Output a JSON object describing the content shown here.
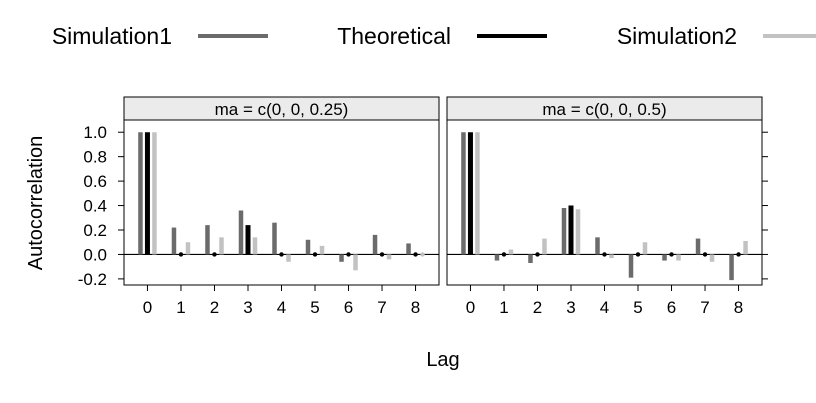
{
  "colors": {
    "Simulation1": "#6b6b6b",
    "Theoretical": "#000000",
    "Simulation2": "#c2c2c2",
    "strip_bg": "#ebebeb",
    "frame": "#000000"
  },
  "chart_data": {
    "type": "bar",
    "xlabel": "Lag",
    "ylabel": "Autocorrelation",
    "ylim": [
      -0.25,
      1.1
    ],
    "xlim": [
      -0.7,
      8.7
    ],
    "yticks": [
      -0.2,
      0.0,
      0.2,
      0.4,
      0.6,
      0.8,
      1.0
    ],
    "yticklabels": [
      "-0.2",
      "0.0",
      "0.2",
      "0.4",
      "0.6",
      "0.8",
      "1.0"
    ],
    "xticks": [
      0,
      1,
      2,
      3,
      4,
      5,
      6,
      7,
      8
    ],
    "xticklabels": [
      "0",
      "1",
      "2",
      "3",
      "4",
      "5",
      "6",
      "7",
      "8"
    ],
    "legend": {
      "placement": "top",
      "entries": [
        "Simulation1",
        "Theoretical",
        "Simulation2"
      ]
    },
    "panels": [
      {
        "strip": "ma = c(0, 0, 0.25)",
        "lags": [
          0,
          1,
          2,
          3,
          4,
          5,
          6,
          7,
          8
        ],
        "series": [
          {
            "name": "Simulation1",
            "values": [
              1.0,
              0.22,
              0.24,
              0.36,
              0.26,
              0.12,
              -0.06,
              0.16,
              0.09
            ]
          },
          {
            "name": "Theoretical",
            "values": [
              1.0,
              0.0,
              0.0,
              0.24,
              0.0,
              0.0,
              0.0,
              0.0,
              0.0
            ]
          },
          {
            "name": "Simulation2",
            "values": [
              1.0,
              0.1,
              0.14,
              0.14,
              -0.06,
              0.07,
              -0.13,
              -0.04,
              0.0
            ]
          }
        ]
      },
      {
        "strip": "ma = c(0, 0, 0.5)",
        "lags": [
          0,
          1,
          2,
          3,
          4,
          5,
          6,
          7,
          8
        ],
        "series": [
          {
            "name": "Simulation1",
            "values": [
              1.0,
              -0.05,
              -0.07,
              0.38,
              0.14,
              -0.19,
              -0.05,
              0.13,
              -0.21
            ]
          },
          {
            "name": "Theoretical",
            "values": [
              1.0,
              0.0,
              0.0,
              0.4,
              0.0,
              0.0,
              0.0,
              0.0,
              0.0
            ]
          },
          {
            "name": "Simulation2",
            "values": [
              1.0,
              0.04,
              0.13,
              0.37,
              -0.03,
              0.1,
              -0.05,
              -0.06,
              0.11
            ]
          }
        ]
      }
    ]
  }
}
